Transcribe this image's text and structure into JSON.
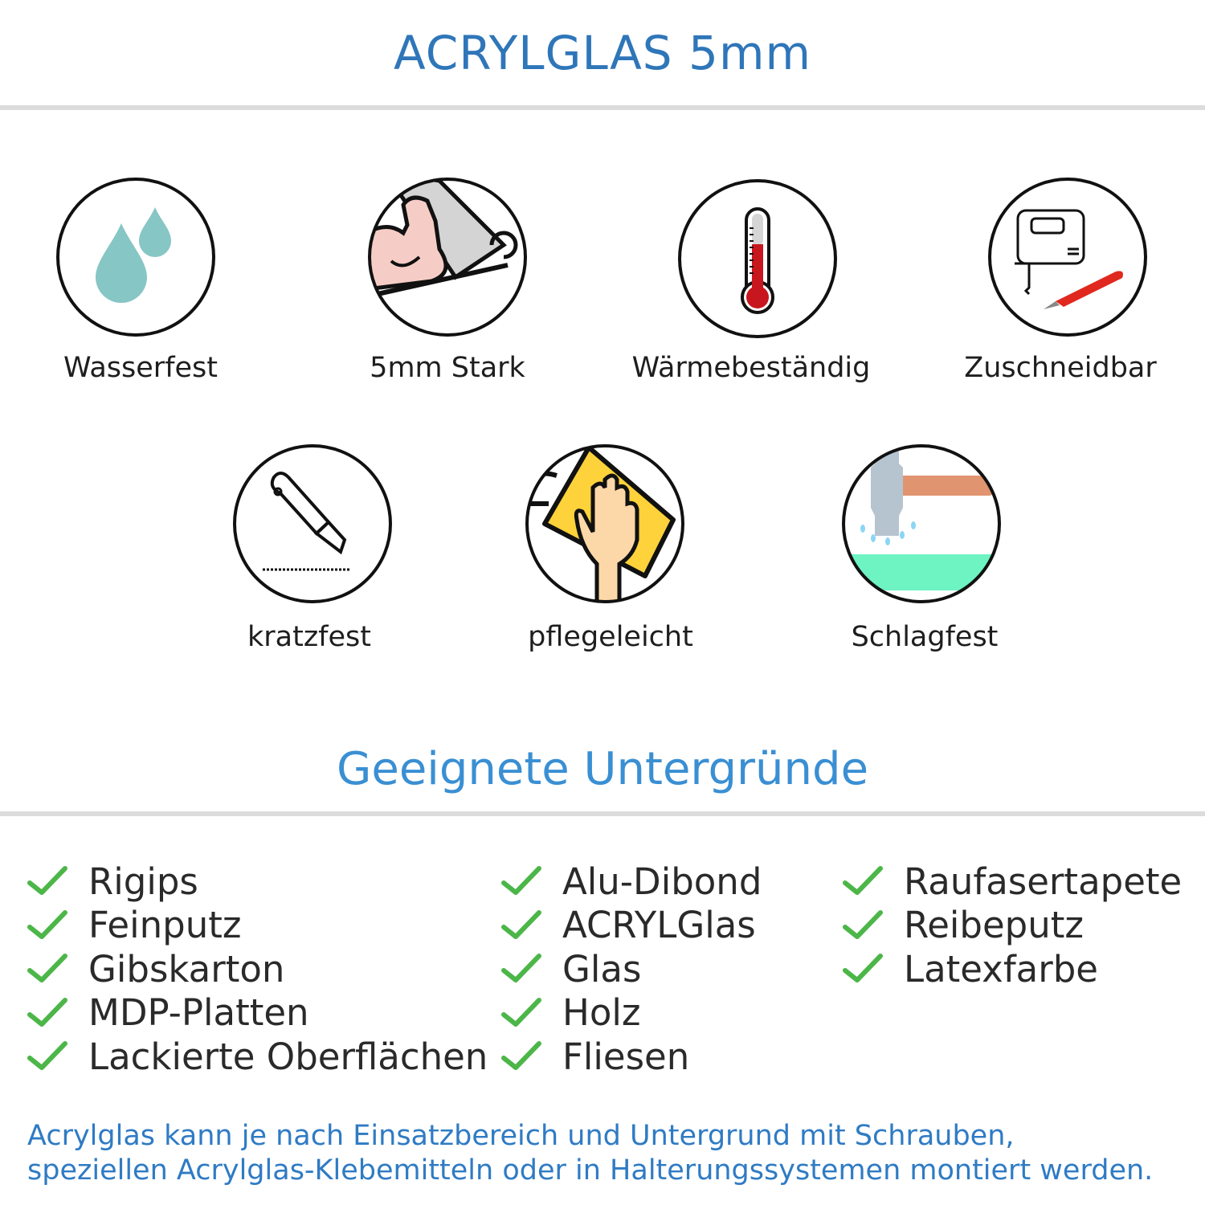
{
  "header": {
    "title": "ACRYLGLAS 5mm"
  },
  "features": [
    {
      "label": "Wasserfest",
      "icon": "water-drops-icon"
    },
    {
      "label": "5mm Stark",
      "icon": "flexed-arm-icon"
    },
    {
      "label": "Wärmebeständig",
      "icon": "thermometer-icon"
    },
    {
      "label": "Zuschneidbar",
      "icon": "jigsaw-knife-icon"
    },
    {
      "label": "kratzfest",
      "icon": "cutter-knife-icon"
    },
    {
      "label": "pflegeleicht",
      "icon": "hand-cloth-icon"
    },
    {
      "label": "Schlagfest",
      "icon": "hammer-icon"
    }
  ],
  "surfaces": {
    "title": "Geeignete Untergründe",
    "columns": [
      [
        "Rigips",
        "Feinputz",
        "Gibskarton",
        "MDP-Platten",
        "Lackierte Oberflächen"
      ],
      [
        "Alu-Dibond",
        "ACRYLGlas",
        "Glas",
        "Holz",
        "Fliesen"
      ],
      [
        "Raufasertapete",
        "Reibeputz",
        "Latexfarbe"
      ]
    ]
  },
  "note": {
    "line1": "Acrylglas kann je nach Einsatzbereich und Untergrund mit Schrauben,",
    "line2": "speziellen Acrylglas-Klebemitteln oder in Halterungssystemen montiert werden."
  },
  "colors": {
    "title": "#2f76b9",
    "subtitle": "#3a8fd3",
    "check": "#4cb648",
    "note": "#2f7bc4"
  }
}
